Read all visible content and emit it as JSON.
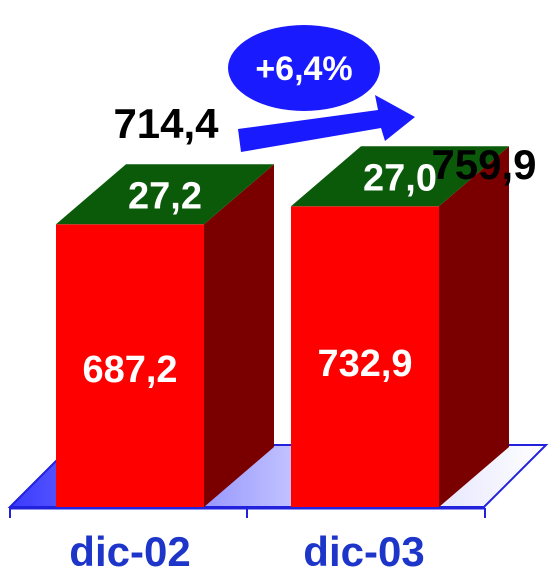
{
  "chart_data": {
    "type": "bar",
    "stacked": true,
    "three_d": true,
    "categories": [
      "dic-02",
      "dic-03"
    ],
    "series": [
      {
        "values": [
          687.2,
          732.9
        ],
        "labels": [
          "687,2",
          "732,9"
        ],
        "color": "#ff0000"
      },
      {
        "values": [
          27.2,
          27.0
        ],
        "labels": [
          "27,2",
          "27,0"
        ],
        "color": "#006600"
      }
    ],
    "totals": {
      "values": [
        714.4,
        759.9
      ],
      "labels": [
        "714,4",
        "759,9"
      ]
    },
    "change": {
      "label": "+6,4%",
      "color": "#1a1aff"
    },
    "grid": false,
    "legend": "none",
    "colors": {
      "bar_front": "#ff0000",
      "bar_side": "#7a0000",
      "bar_top": "#0a5a0a",
      "floor": "#3333ff",
      "axis": "#2222dd",
      "category_text": "#1d35c9",
      "value_text_inside": "#ffffff",
      "value_text_outside": "#000000"
    }
  }
}
